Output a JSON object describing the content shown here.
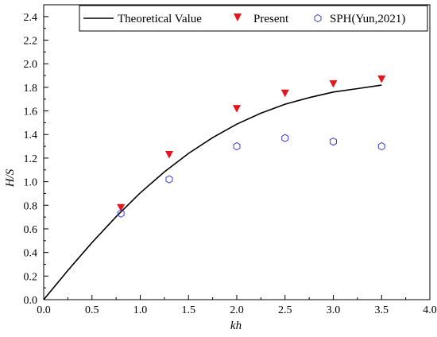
{
  "chart_data": {
    "type": "line",
    "xlabel": "kh",
    "ylabel": "H/S",
    "xlim": [
      0.0,
      4.0
    ],
    "ylim": [
      0.0,
      2.5
    ],
    "x_ticks": [
      "0.0",
      "0.5",
      "1.0",
      "1.5",
      "2.0",
      "2.5",
      "3.0",
      "3.5",
      "4.0"
    ],
    "y_ticks": [
      "0.0",
      "0.2",
      "0.4",
      "0.6",
      "0.8",
      "1.0",
      "1.2",
      "1.4",
      "1.6",
      "1.8",
      "2.0",
      "2.2",
      "2.4"
    ],
    "legend_position": "top",
    "series": [
      {
        "name": "Theoretical Value",
        "style": "line",
        "color": "#000000",
        "x": [
          0.0,
          0.25,
          0.5,
          0.75,
          1.0,
          1.25,
          1.5,
          1.75,
          2.0,
          2.25,
          2.5,
          2.75,
          3.0,
          3.25,
          3.5
        ],
        "y": [
          0.0,
          0.247,
          0.484,
          0.703,
          0.905,
          1.083,
          1.24,
          1.373,
          1.488,
          1.581,
          1.657,
          1.713,
          1.76,
          1.789,
          1.819
        ]
      },
      {
        "name": "Present",
        "style": "triangle-down",
        "color": "#e8141b",
        "x": [
          0.8,
          1.3,
          2.0,
          2.5,
          3.0,
          3.5
        ],
        "y": [
          0.78,
          1.23,
          1.62,
          1.75,
          1.83,
          1.87
        ]
      },
      {
        "name": "SPH(Yun,2021)",
        "style": "hexagon-open",
        "color": "#3b3bd1",
        "x": [
          0.8,
          1.3,
          2.0,
          2.5,
          3.0,
          3.5
        ],
        "y": [
          0.73,
          1.02,
          1.3,
          1.37,
          1.34,
          1.3
        ]
      }
    ]
  }
}
